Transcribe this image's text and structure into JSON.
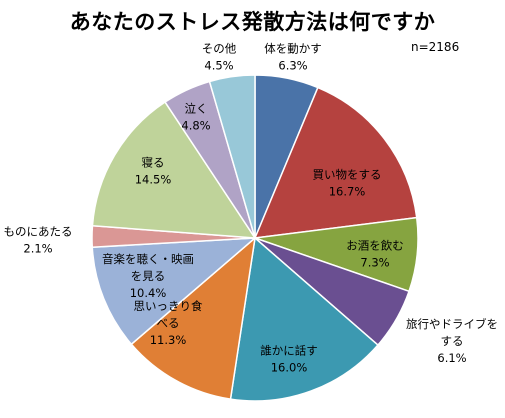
{
  "chart_data": {
    "type": "pie",
    "title": "あなたのストレス発散方法は何ですか",
    "annotation": "n=2186",
    "slices": [
      {
        "label": [
          "体を動かす"
        ],
        "value_label": "6.3%",
        "value": 6.3,
        "color": "#4a73a8"
      },
      {
        "label": [
          "買い物をする"
        ],
        "value_label": "16.7%",
        "value": 16.7,
        "color": "#b5423f"
      },
      {
        "label": [
          "お酒を飲む"
        ],
        "value_label": "7.3%",
        "value": 7.3,
        "color": "#86a440"
      },
      {
        "label": [
          "旅行やドライブを",
          "する"
        ],
        "value_label": "6.1%",
        "value": 6.1,
        "color": "#6a4f91"
      },
      {
        "label": [
          "誰かに話す"
        ],
        "value_label": "16.0%",
        "value": 16.0,
        "color": "#3c99b1"
      },
      {
        "label": [
          "思いっきり食",
          "べる"
        ],
        "value_label": "11.3%",
        "value": 11.3,
        "color": "#e07f35"
      },
      {
        "label": [
          "音楽を聴く・映画",
          "を見る"
        ],
        "value_label": "10.4%",
        "value": 10.4,
        "color": "#9bb2d8"
      },
      {
        "label": [
          "ものにあたる"
        ],
        "value_label": "2.1%",
        "value": 2.1,
        "color": "#da9795"
      },
      {
        "label": [
          "寝る"
        ],
        "value_label": "14.5%",
        "value": 14.5,
        "color": "#bfd39a"
      },
      {
        "label": [
          "泣く"
        ],
        "value_label": "4.8%",
        "value": 4.8,
        "color": "#b0a3c6"
      },
      {
        "label": [
          "その他"
        ],
        "value_label": "4.5%",
        "value": 4.5,
        "color": "#98c8d8"
      }
    ]
  }
}
